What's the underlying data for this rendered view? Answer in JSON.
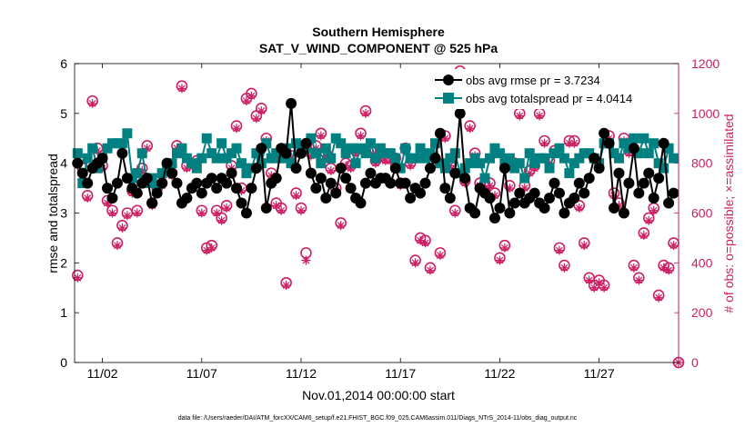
{
  "colors": {
    "rmse": "#000000",
    "spread": "#008080",
    "obs": "#cc1f63",
    "axis": "#000000"
  },
  "chart_data": {
    "type": "line",
    "title": "Southern Hemisphere",
    "subtitle": "SAT_V_WIND_COMPONENT @ 525 hPa",
    "xlabel": "Nov.01,2014 00:00:00 start",
    "ylabel_left": "rmse and totalspread",
    "ylabel_right": "# of obs: o=possible; ×=assimilated",
    "footnote": "data file: /Users/raeder/DAI/ATM_forcXX/CAM6_setup/f.e21.FHIST_BGC.f09_025.CAM6assim.011/Diags_NTrS_2014-11/obs_diag_output.nc",
    "xlim": [
      0.6,
      31.0
    ],
    "ylim_left": [
      0,
      6
    ],
    "ylim_right": [
      0,
      1200
    ],
    "x_ticks": [
      2,
      7,
      12,
      17,
      22,
      27
    ],
    "x_tick_labels": [
      "11/02",
      "11/07",
      "11/12",
      "11/17",
      "11/22",
      "11/27"
    ],
    "y_left_ticks": [
      "0",
      "1",
      "2",
      "3",
      "4",
      "5",
      "6"
    ],
    "y_right_ticks": [
      "0",
      "200",
      "400",
      "600",
      "800",
      "1000",
      "1200"
    ],
    "legend": [
      "obs avg rmse pr = 3.7234",
      "obs avg totalspread pr = 4.0414"
    ],
    "x": [
      0.75,
      1.0,
      1.25,
      1.5,
      1.75,
      2.0,
      2.25,
      2.5,
      2.75,
      3.0,
      3.25,
      3.5,
      3.75,
      4.0,
      4.25,
      4.5,
      4.75,
      5.0,
      5.25,
      5.5,
      5.75,
      6.0,
      6.25,
      6.5,
      6.75,
      7.0,
      7.25,
      7.5,
      7.75,
      8.0,
      8.25,
      8.5,
      8.75,
      9.0,
      9.25,
      9.5,
      9.75,
      10.0,
      10.25,
      10.5,
      10.75,
      11.0,
      11.25,
      11.5,
      11.75,
      12.0,
      12.25,
      12.5,
      12.75,
      13.0,
      13.25,
      13.5,
      13.75,
      14.0,
      14.25,
      14.5,
      14.75,
      15.0,
      15.25,
      15.5,
      15.75,
      16.0,
      16.25,
      16.5,
      16.75,
      17.0,
      17.25,
      17.5,
      17.75,
      18.0,
      18.25,
      18.5,
      18.75,
      19.0,
      19.25,
      19.5,
      19.75,
      20.0,
      20.25,
      20.5,
      20.75,
      21.0,
      21.25,
      21.5,
      21.75,
      22.0,
      22.25,
      22.5,
      22.75,
      23.0,
      23.25,
      23.5,
      23.75,
      24.0,
      24.25,
      24.5,
      24.75,
      25.0,
      25.25,
      25.5,
      25.75,
      26.0,
      26.25,
      26.5,
      26.75,
      27.0,
      27.25,
      27.5,
      27.75,
      28.0,
      28.25,
      28.5,
      28.75,
      29.0,
      29.25,
      29.5,
      29.75,
      30.0,
      30.25,
      30.5,
      30.75
    ],
    "series": [
      {
        "name": "obs avg rmse pr = 3.7234",
        "values": [
          4.0,
          3.8,
          3.6,
          3.9,
          4.0,
          4.1,
          3.5,
          3.3,
          3.6,
          4.2,
          3.7,
          3.5,
          3.4,
          3.6,
          3.7,
          3.2,
          3.4,
          3.6,
          4.0,
          3.8,
          3.6,
          3.2,
          3.3,
          3.5,
          3.6,
          3.4,
          3.6,
          3.7,
          3.5,
          3.7,
          3.6,
          3.8,
          3.5,
          3.2,
          3.0,
          3.5,
          3.9,
          4.3,
          3.1,
          3.6,
          3.7,
          4.3,
          4.2,
          5.2,
          3.9,
          4.2,
          4.4,
          3.8,
          3.5,
          3.7,
          3.3,
          3.6,
          3.4,
          3.9,
          3.7,
          3.5,
          3.3,
          3.2,
          3.6,
          3.8,
          3.6,
          3.7,
          3.7,
          3.6,
          3.9,
          3.6,
          3.6,
          3.3,
          3.5,
          3.4,
          3.6,
          3.9,
          4.1,
          4.6,
          3.5,
          3.3,
          3.8,
          5.0,
          3.7,
          3.1,
          3.0,
          3.5,
          3.4,
          3.3,
          2.9,
          3.1,
          3.9,
          3.0,
          3.2,
          3.4,
          3.2,
          3.3,
          3.4,
          3.2,
          3.1,
          3.3,
          3.6,
          3.4,
          3.0,
          3.2,
          3.3,
          3.6,
          3.4,
          3.7,
          4.1,
          3.9,
          4.6,
          4.4,
          3.1,
          3.8,
          3.0,
          3.6,
          4.3,
          3.4,
          3.6,
          3.8,
          3.3,
          3.7,
          4.4,
          3.2,
          3.4
        ],
        "color": "#000000"
      },
      {
        "name": "obs avg totalspread pr = 4.0414",
        "values": [
          4.2,
          3.6,
          4.1,
          4.3,
          3.9,
          4.1,
          4.3,
          4.4,
          4.4,
          4.4,
          4.6,
          3.7,
          3.8,
          4.2,
          3.6,
          3.7,
          3.5,
          3.8,
          3.9,
          4.0,
          4.2,
          4.3,
          4.1,
          4.0,
          3.9,
          4.1,
          4.5,
          4.2,
          4.1,
          4.4,
          4.1,
          4.2,
          4.3,
          4.0,
          3.8,
          3.9,
          4.2,
          4.0,
          4.4,
          4.1,
          4.2,
          4.1,
          4.3,
          4.0,
          4.4,
          4.3,
          4.3,
          4.5,
          4.2,
          4.0,
          4.3,
          4.1,
          4.5,
          4.4,
          4.2,
          4.3,
          4.0,
          4.3,
          4.2,
          4.4,
          4.1,
          4.3,
          4.2,
          4.2,
          4.1,
          3.9,
          4.3,
          4.1,
          4.1,
          4.3,
          4.1,
          4.2,
          4.4,
          4.0,
          3.9,
          4.1,
          4.2,
          3.8,
          3.9,
          4.0,
          4.1,
          4.0,
          3.7,
          4.1,
          4.3,
          4.2,
          4.0,
          4.1,
          3.9,
          4.0,
          3.7,
          4.2,
          4.0,
          4.1,
          4.1,
          3.9,
          4.2,
          4.3,
          4.1,
          3.8,
          4.0,
          4.1,
          4.2,
          4.2,
          4.1,
          4.0,
          4.4,
          4.4,
          4.2,
          4.1,
          4.4,
          4.3,
          4.5,
          4.2,
          4.5,
          4.2,
          4.4,
          4.0,
          3.9,
          4.3,
          4.1
        ],
        "color": "#008080"
      }
    ],
    "obs_possible": [
      [
        0.75,
        350
      ],
      [
        1.0,
        780
      ],
      [
        1.25,
        670
      ],
      [
        1.5,
        1050
      ],
      [
        1.75,
        860
      ],
      [
        2.0,
        790
      ],
      [
        2.25,
        650
      ],
      [
        2.5,
        610
      ],
      [
        2.75,
        480
      ],
      [
        3.0,
        550
      ],
      [
        3.25,
        600
      ],
      [
        3.5,
        690
      ],
      [
        3.75,
        610
      ],
      [
        4.0,
        780
      ],
      [
        4.25,
        870
      ],
      [
        4.5,
        640
      ],
      [
        4.75,
        700
      ],
      [
        5.0,
        720
      ],
      [
        5.5,
        760
      ],
      [
        5.75,
        870
      ],
      [
        6.0,
        1110
      ],
      [
        6.25,
        790
      ],
      [
        6.75,
        810
      ],
      [
        7.0,
        610
      ],
      [
        7.25,
        460
      ],
      [
        7.5,
        470
      ],
      [
        7.75,
        610
      ],
      [
        8.0,
        580
      ],
      [
        8.25,
        630
      ],
      [
        8.5,
        790
      ],
      [
        8.75,
        950
      ],
      [
        9.0,
        700
      ],
      [
        9.25,
        1060
      ],
      [
        9.5,
        1080
      ],
      [
        9.75,
        990
      ],
      [
        10.0,
        1020
      ],
      [
        10.25,
        900
      ],
      [
        10.5,
        760
      ],
      [
        10.75,
        640
      ],
      [
        11.0,
        620
      ],
      [
        11.25,
        320
      ],
      [
        11.5,
        830
      ],
      [
        11.75,
        680
      ],
      [
        12.0,
        620
      ],
      [
        12.25,
        440
      ],
      [
        12.5,
        840
      ],
      [
        12.75,
        870
      ],
      [
        13.0,
        920
      ],
      [
        13.25,
        840
      ],
      [
        13.5,
        780
      ],
      [
        13.75,
        700
      ],
      [
        14.0,
        560
      ],
      [
        14.25,
        800
      ],
      [
        14.5,
        790
      ],
      [
        14.75,
        850
      ],
      [
        15.0,
        920
      ],
      [
        15.25,
        1010
      ],
      [
        15.5,
        850
      ],
      [
        15.75,
        810
      ],
      [
        16.0,
        830
      ],
      [
        16.25,
        820
      ],
      [
        16.5,
        820
      ],
      [
        16.75,
        820
      ],
      [
        17.0,
        720
      ],
      [
        17.25,
        860
      ],
      [
        17.5,
        800
      ],
      [
        17.75,
        410
      ],
      [
        18.0,
        500
      ],
      [
        18.25,
        490
      ],
      [
        18.5,
        380
      ],
      [
        18.75,
        820
      ],
      [
        19.0,
        440
      ],
      [
        19.25,
        910
      ],
      [
        19.5,
        800
      ],
      [
        19.75,
        610
      ],
      [
        20.0,
        1170
      ],
      [
        20.25,
        730
      ],
      [
        20.5,
        950
      ],
      [
        20.75,
        840
      ],
      [
        21.0,
        720
      ],
      [
        21.25,
        710
      ],
      [
        21.5,
        720
      ],
      [
        21.75,
        680
      ],
      [
        22.0,
        420
      ],
      [
        22.25,
        470
      ],
      [
        22.5,
        710
      ],
      [
        22.75,
        800
      ],
      [
        23.0,
        1000
      ],
      [
        23.25,
        710
      ],
      [
        23.5,
        770
      ],
      [
        23.75,
        790
      ],
      [
        24.0,
        1000
      ],
      [
        24.25,
        890
      ],
      [
        24.5,
        810
      ],
      [
        24.75,
        850
      ],
      [
        25.0,
        460
      ],
      [
        25.25,
        390
      ],
      [
        25.5,
        890
      ],
      [
        25.75,
        890
      ],
      [
        26.0,
        630
      ],
      [
        26.25,
        480
      ],
      [
        26.5,
        340
      ],
      [
        26.75,
        310
      ],
      [
        27.0,
        330
      ],
      [
        27.25,
        310
      ],
      [
        27.5,
        910
      ],
      [
        27.75,
        680
      ],
      [
        28.0,
        640
      ],
      [
        28.25,
        900
      ],
      [
        28.5,
        850
      ],
      [
        28.75,
        390
      ],
      [
        29.0,
        340
      ],
      [
        29.25,
        520
      ],
      [
        29.5,
        580
      ],
      [
        29.75,
        620
      ],
      [
        30.0,
        270
      ],
      [
        30.25,
        390
      ],
      [
        30.5,
        380
      ],
      [
        30.75,
        480
      ]
    ],
    "obs_assimilated": [
      [
        0.75,
        340
      ],
      [
        1.0,
        760
      ],
      [
        1.25,
        660
      ],
      [
        1.5,
        1040
      ],
      [
        1.75,
        850
      ],
      [
        2.0,
        780
      ],
      [
        2.25,
        640
      ],
      [
        2.5,
        600
      ],
      [
        2.75,
        470
      ],
      [
        3.0,
        540
      ],
      [
        3.25,
        590
      ],
      [
        3.5,
        680
      ],
      [
        3.75,
        600
      ],
      [
        4.0,
        770
      ],
      [
        4.25,
        860
      ],
      [
        4.5,
        630
      ],
      [
        4.75,
        690
      ],
      [
        5.0,
        710
      ],
      [
        5.5,
        750
      ],
      [
        5.75,
        860
      ],
      [
        6.0,
        1100
      ],
      [
        6.25,
        780
      ],
      [
        6.75,
        800
      ],
      [
        7.0,
        600
      ],
      [
        7.25,
        450
      ],
      [
        7.5,
        460
      ],
      [
        7.75,
        600
      ],
      [
        8.0,
        570
      ],
      [
        8.25,
        620
      ],
      [
        8.5,
        780
      ],
      [
        8.75,
        940
      ],
      [
        9.0,
        690
      ],
      [
        9.25,
        1050
      ],
      [
        9.5,
        1070
      ],
      [
        9.75,
        980
      ],
      [
        10.0,
        1010
      ],
      [
        10.25,
        890
      ],
      [
        10.5,
        750
      ],
      [
        10.75,
        630
      ],
      [
        11.0,
        610
      ],
      [
        11.25,
        310
      ],
      [
        11.5,
        820
      ],
      [
        11.75,
        670
      ],
      [
        12.0,
        610
      ],
      [
        12.25,
        410
      ],
      [
        12.5,
        830
      ],
      [
        12.75,
        860
      ],
      [
        13.0,
        910
      ],
      [
        13.25,
        830
      ],
      [
        13.5,
        770
      ],
      [
        13.75,
        690
      ],
      [
        14.0,
        550
      ],
      [
        14.25,
        790
      ],
      [
        14.5,
        780
      ],
      [
        14.75,
        840
      ],
      [
        15.0,
        910
      ],
      [
        15.25,
        1000
      ],
      [
        15.5,
        840
      ],
      [
        15.75,
        800
      ],
      [
        16.0,
        820
      ],
      [
        16.25,
        810
      ],
      [
        16.5,
        810
      ],
      [
        16.75,
        810
      ],
      [
        17.0,
        710
      ],
      [
        17.25,
        850
      ],
      [
        17.5,
        790
      ],
      [
        17.75,
        400
      ],
      [
        18.0,
        490
      ],
      [
        18.25,
        480
      ],
      [
        18.5,
        370
      ],
      [
        18.75,
        810
      ],
      [
        19.0,
        430
      ],
      [
        19.25,
        900
      ],
      [
        19.5,
        790
      ],
      [
        19.75,
        600
      ],
      [
        20.0,
        1160
      ],
      [
        20.25,
        720
      ],
      [
        20.5,
        940
      ],
      [
        20.75,
        830
      ],
      [
        21.0,
        710
      ],
      [
        21.25,
        700
      ],
      [
        21.5,
        710
      ],
      [
        21.75,
        670
      ],
      [
        22.0,
        410
      ],
      [
        22.25,
        460
      ],
      [
        22.5,
        700
      ],
      [
        22.75,
        790
      ],
      [
        23.0,
        990
      ],
      [
        23.25,
        700
      ],
      [
        23.5,
        760
      ],
      [
        23.75,
        780
      ],
      [
        24.0,
        990
      ],
      [
        24.25,
        880
      ],
      [
        24.5,
        800
      ],
      [
        24.75,
        840
      ],
      [
        25.0,
        450
      ],
      [
        25.25,
        380
      ],
      [
        25.5,
        880
      ],
      [
        25.75,
        880
      ],
      [
        26.0,
        620
      ],
      [
        26.25,
        470
      ],
      [
        26.5,
        330
      ],
      [
        26.75,
        300
      ],
      [
        27.0,
        320
      ],
      [
        27.25,
        300
      ],
      [
        27.5,
        900
      ],
      [
        27.75,
        670
      ],
      [
        28.0,
        630
      ],
      [
        28.25,
        890
      ],
      [
        28.5,
        840
      ],
      [
        28.75,
        380
      ],
      [
        29.0,
        330
      ],
      [
        29.25,
        510
      ],
      [
        29.5,
        570
      ],
      [
        29.75,
        610
      ],
      [
        30.0,
        260
      ],
      [
        30.25,
        380
      ],
      [
        30.5,
        370
      ],
      [
        30.75,
        470
      ]
    ],
    "outlier": [
      31.0,
      0
    ]
  }
}
